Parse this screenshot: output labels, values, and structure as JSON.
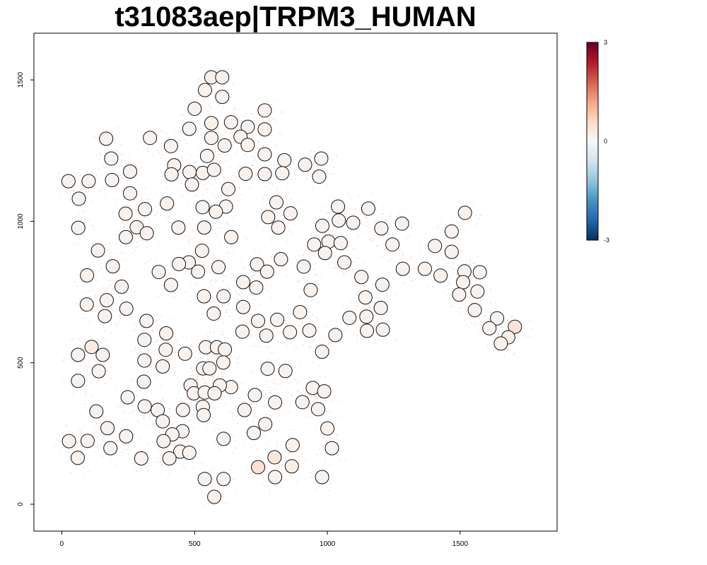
{
  "chart_data": {
    "type": "scatter",
    "title": "t31083aep|TRPM3_HUMAN",
    "xlabel": "",
    "ylabel": "",
    "xlim": [
      -105,
      1865
    ],
    "ylim": [
      -95,
      1665
    ],
    "x_ticks": [
      0,
      500,
      1000,
      1500
    ],
    "y_ticks": [
      0,
      500,
      1000,
      1500
    ],
    "x_tick_labels": [
      "0",
      "500",
      "1000",
      "1500"
    ],
    "y_tick_labels": [
      "0",
      "500",
      "1000",
      "1500"
    ],
    "grid": false,
    "background_points": "dense light-grey cells following the same tissue outline as the spots",
    "colorbar": {
      "placement": "right",
      "min": -3,
      "max": 3,
      "tick_labels": [
        "3",
        "0",
        "-3"
      ],
      "colors": [
        "#053061",
        "#2166ac",
        "#4393c3",
        "#92c5de",
        "#d1e5f0",
        "#f7f7f7",
        "#fddbc7",
        "#f4a582",
        "#d6604d",
        "#b2182b",
        "#67001f"
      ]
    },
    "spots": [
      [
        563,
        1509,
        0.15
      ],
      [
        604,
        1509,
        0.15
      ],
      [
        539,
        1464,
        0.1
      ],
      [
        604,
        1440,
        0.1
      ],
      [
        500,
        1398,
        0.1
      ],
      [
        764,
        1392,
        0.1
      ],
      [
        563,
        1347,
        0.15
      ],
      [
        637,
        1350,
        0.1
      ],
      [
        700,
        1334,
        0.1
      ],
      [
        764,
        1325,
        0.1
      ],
      [
        480,
        1327,
        0.1
      ],
      [
        673,
        1299,
        0.1
      ],
      [
        563,
        1295,
        0.1
      ],
      [
        167,
        1292,
        0.1
      ],
      [
        332,
        1295,
        0.1
      ],
      [
        613,
        1268,
        0.1
      ],
      [
        700,
        1270,
        0.1
      ],
      [
        411,
        1266,
        0.1
      ],
      [
        764,
        1237,
        0.1
      ],
      [
        838,
        1216,
        0.1
      ],
      [
        547,
        1231,
        0.1
      ],
      [
        186,
        1222,
        0.1
      ],
      [
        977,
        1222,
        0.1
      ],
      [
        916,
        1200,
        0.1
      ],
      [
        423,
        1198,
        0.1
      ],
      [
        257,
        1176,
        0.1
      ],
      [
        481,
        1174,
        0.1
      ],
      [
        531,
        1171,
        0.1
      ],
      [
        573,
        1182,
        0.1
      ],
      [
        692,
        1168,
        0.1
      ],
      [
        764,
        1167,
        0.1
      ],
      [
        830,
        1170,
        0.1
      ],
      [
        969,
        1158,
        0.1
      ],
      [
        413,
        1166,
        0.1
      ],
      [
        25,
        1142,
        0.1
      ],
      [
        101,
        1142,
        0.1
      ],
      [
        189,
        1146,
        0.1
      ],
      [
        490,
        1130,
        0.1
      ],
      [
        627,
        1114,
        0.1
      ],
      [
        257,
        1099,
        0.1
      ],
      [
        64,
        1080,
        0.1
      ],
      [
        808,
        1067,
        0.1
      ],
      [
        396,
        1063,
        0.1
      ],
      [
        618,
        1052,
        0.1
      ],
      [
        1040,
        1052,
        0.1
      ],
      [
        1154,
        1045,
        0.1
      ],
      [
        313,
        1043,
        0.1
      ],
      [
        530,
        1050,
        0.1
      ],
      [
        580,
        1034,
        0.1
      ],
      [
        1518,
        1030,
        0.1
      ],
      [
        240,
        1027,
        0.1
      ],
      [
        861,
        1028,
        0.1
      ],
      [
        777,
        1015,
        0.1
      ],
      [
        1043,
        1003,
        0.1
      ],
      [
        1097,
        995,
        0.1
      ],
      [
        1281,
        992,
        0.1
      ],
      [
        981,
        984,
        0.1
      ],
      [
        1203,
        975,
        0.1
      ],
      [
        282,
        979,
        0.1
      ],
      [
        439,
        978,
        0.1
      ],
      [
        536,
        978,
        0.1
      ],
      [
        62,
        977,
        0.1
      ],
      [
        815,
        978,
        0.1
      ],
      [
        1468,
        964,
        0.1
      ],
      [
        320,
        958,
        0.1
      ],
      [
        241,
        944,
        0.1
      ],
      [
        638,
        944,
        0.1
      ],
      [
        1004,
        928,
        0.1
      ],
      [
        1050,
        923,
        0.1
      ],
      [
        1245,
        918,
        0.1
      ],
      [
        950,
        918,
        0.1
      ],
      [
        1405,
        913,
        0.1
      ],
      [
        136,
        897,
        0.1
      ],
      [
        1468,
        892,
        0.1
      ],
      [
        528,
        896,
        0.1
      ],
      [
        991,
        888,
        0.1
      ],
      [
        825,
        866,
        0.1
      ],
      [
        1064,
        855,
        0.1
      ],
      [
        478,
        855,
        0.1
      ],
      [
        735,
        848,
        0.1
      ],
      [
        441,
        849,
        0.1
      ],
      [
        192,
        841,
        0.1
      ],
      [
        590,
        838,
        0.1
      ],
      [
        911,
        840,
        0.1
      ],
      [
        1367,
        832,
        0.1
      ],
      [
        1284,
        832,
        0.1
      ],
      [
        365,
        821,
        0.1
      ],
      [
        513,
        822,
        0.1
      ],
      [
        773,
        822,
        0.1
      ],
      [
        1574,
        820,
        0.1
      ],
      [
        1516,
        823,
        0.1
      ],
      [
        1426,
        808,
        0.1
      ],
      [
        95,
        809,
        0.1
      ],
      [
        1128,
        803,
        0.1
      ],
      [
        1511,
        785,
        0.1
      ],
      [
        683,
        785,
        0.1
      ],
      [
        411,
        775,
        0.1
      ],
      [
        1207,
        776,
        0.1
      ],
      [
        225,
        769,
        0.1
      ],
      [
        732,
        766,
        0.1
      ],
      [
        937,
        757,
        0.1
      ],
      [
        1565,
        752,
        0.1
      ],
      [
        1496,
        741,
        0.1
      ],
      [
        535,
        735,
        0.1
      ],
      [
        609,
        735,
        0.1
      ],
      [
        1143,
        731,
        0.1
      ],
      [
        169,
        721,
        0.1
      ],
      [
        94,
        706,
        0.1
      ],
      [
        683,
        697,
        0.1
      ],
      [
        1201,
        694,
        0.1
      ],
      [
        243,
        691,
        0.1
      ],
      [
        1555,
        686,
        0.1
      ],
      [
        572,
        674,
        0.1
      ],
      [
        897,
        679,
        0.1
      ],
      [
        1083,
        659,
        0.1
      ],
      [
        1147,
        663,
        0.1
      ],
      [
        162,
        665,
        0.1
      ],
      [
        1639,
        657,
        0.1
      ],
      [
        811,
        652,
        0.1
      ],
      [
        739,
        648,
        0.1
      ],
      [
        319,
        648,
        0.1
      ],
      [
        1706,
        627,
        0.4
      ],
      [
        1610,
        622,
        0.1
      ],
      [
        1209,
        617,
        0.1
      ],
      [
        1149,
        613,
        0.1
      ],
      [
        932,
        614,
        0.1
      ],
      [
        680,
        610,
        0.1
      ],
      [
        859,
        608,
        0.1
      ],
      [
        393,
        604,
        0.1
      ],
      [
        1681,
        590,
        0.2
      ],
      [
        1653,
        568,
        0.15
      ],
      [
        1030,
        598,
        0.1
      ],
      [
        770,
        596,
        0.1
      ],
      [
        311,
        581,
        0.1
      ],
      [
        112,
        556,
        0.25
      ],
      [
        542,
        555,
        0.1
      ],
      [
        584,
        555,
        0.1
      ],
      [
        614,
        547,
        0.1
      ],
      [
        391,
        546,
        0.1
      ],
      [
        464,
        532,
        0.1
      ],
      [
        980,
        539,
        0.1
      ],
      [
        61,
        528,
        0.1
      ],
      [
        154,
        528,
        0.1
      ],
      [
        311,
        508,
        0.1
      ],
      [
        608,
        501,
        0.1
      ],
      [
        380,
        487,
        0.1
      ],
      [
        532,
        480,
        0.1
      ],
      [
        556,
        480,
        0.1
      ],
      [
        775,
        479,
        0.1
      ],
      [
        842,
        471,
        0.1
      ],
      [
        139,
        470,
        0.1
      ],
      [
        309,
        433,
        0.1
      ],
      [
        61,
        436,
        0.1
      ],
      [
        485,
        420,
        0.1
      ],
      [
        637,
        414,
        0.1
      ],
      [
        595,
        420,
        0.1
      ],
      [
        945,
        411,
        0.1
      ],
      [
        988,
        399,
        0.1
      ],
      [
        497,
        392,
        0.1
      ],
      [
        538,
        395,
        0.1
      ],
      [
        575,
        392,
        0.1
      ],
      [
        727,
        386,
        0.1
      ],
      [
        248,
        378,
        0.1
      ],
      [
        906,
        361,
        0.1
      ],
      [
        803,
        360,
        0.1
      ],
      [
        312,
        346,
        0.1
      ],
      [
        531,
        344,
        0.1
      ],
      [
        965,
        336,
        0.1
      ],
      [
        361,
        333,
        0.1
      ],
      [
        688,
        333,
        0.1
      ],
      [
        456,
        333,
        0.1
      ],
      [
        130,
        328,
        0.1
      ],
      [
        534,
        315,
        0.1
      ],
      [
        380,
        293,
        0.1
      ],
      [
        766,
        283,
        0.1
      ],
      [
        172,
        269,
        0.1
      ],
      [
        1000,
        268,
        0.1
      ],
      [
        454,
        258,
        0.1
      ],
      [
        723,
        252,
        0.1
      ],
      [
        416,
        247,
        0.1
      ],
      [
        242,
        240,
        0.1
      ],
      [
        609,
        231,
        0.1
      ],
      [
        27,
        223,
        0.1
      ],
      [
        97,
        224,
        0.1
      ],
      [
        383,
        223,
        0.1
      ],
      [
        869,
        209,
        0.1
      ],
      [
        183,
        198,
        0.1
      ],
      [
        1017,
        198,
        0.1
      ],
      [
        446,
        186,
        0.1
      ],
      [
        480,
        182,
        0.1
      ],
      [
        60,
        164,
        0.1
      ],
      [
        299,
        162,
        0.1
      ],
      [
        405,
        162,
        0.1
      ],
      [
        801,
        166,
        0.35
      ],
      [
        739,
        131,
        0.45
      ],
      [
        866,
        134,
        0.2
      ],
      [
        803,
        96,
        0.1
      ],
      [
        980,
        96,
        0.1
      ],
      [
        538,
        89,
        0.1
      ],
      [
        609,
        89,
        0.1
      ],
      [
        574,
        26,
        0.1
      ]
    ]
  }
}
